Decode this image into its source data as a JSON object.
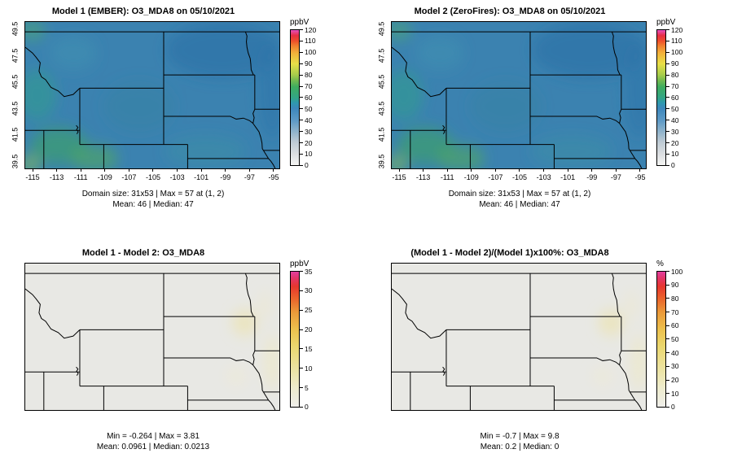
{
  "panels": [
    {
      "title": "Model 1 (EMBER): O3_MDA8 on 05/10/2021",
      "x_ticks": [
        "-115",
        "-113",
        "-111",
        "-109",
        "-107",
        "-105",
        "-103",
        "-101",
        "-99",
        "-97",
        "-95"
      ],
      "y_ticks": [
        "49.5",
        "47.5",
        "45.5",
        "43.5",
        "41.5",
        "39.5"
      ],
      "colorbar_unit": "ppbV",
      "colorbar_ticks": [
        "120",
        "110",
        "100",
        "90",
        "80",
        "70",
        "60",
        "50",
        "40",
        "30",
        "20",
        "10",
        "0"
      ],
      "colorbar_gradient": [
        "#f5f5f3 0%",
        "#dcdfe2 8%",
        "#bfcbd4 17%",
        "#8fb3cb 25%",
        "#5e9ac6 33%",
        "#3d87bc 42%",
        "#2f98b0 46%",
        "#33a585 50%",
        "#3fad5f 58%",
        "#77bb4f 63%",
        "#a8cd4b 67%",
        "#e8df48 75%",
        "#f2b13b 83%",
        "#f1832f 88%",
        "#ee4e2b 92%",
        "#e72f44 96%",
        "#e650c0 100%"
      ],
      "caption1": "Domain size: 31x53 | Max = 57 at (1, 2)",
      "caption2": "Mean: 46 |  Median: 47"
    },
    {
      "title": "Model 2 (ZeroFires): O3_MDA8 on 05/10/2021",
      "x_ticks": [
        "-115",
        "-113",
        "-111",
        "-109",
        "-107",
        "-105",
        "-103",
        "-101",
        "-99",
        "-97",
        "-95"
      ],
      "y_ticks": [
        "49.5",
        "47.5",
        "45.5",
        "43.5",
        "41.5",
        "39.5"
      ],
      "colorbar_unit": "ppbV",
      "colorbar_ticks": [
        "120",
        "110",
        "100",
        "90",
        "80",
        "70",
        "60",
        "50",
        "40",
        "30",
        "20",
        "10",
        "0"
      ],
      "colorbar_gradient": [
        "#f5f5f3 0%",
        "#dcdfe2 8%",
        "#bfcbd4 17%",
        "#8fb3cb 25%",
        "#5e9ac6 33%",
        "#3d87bc 42%",
        "#2f98b0 46%",
        "#33a585 50%",
        "#3fad5f 58%",
        "#77bb4f 63%",
        "#a8cd4b 67%",
        "#e8df48 75%",
        "#f2b13b 83%",
        "#f1832f 88%",
        "#ee4e2b 92%",
        "#e72f44 96%",
        "#e650c0 100%"
      ],
      "caption1": "Domain size: 31x53 | Max = 57 at (1, 2)",
      "caption2": "Mean: 46 |  Median: 47"
    },
    {
      "title": "Model 1 - Model 2: O3_MDA8",
      "colorbar_unit": "ppbV",
      "colorbar_ticks": [
        "35",
        "30",
        "25",
        "20",
        "15",
        "10",
        "5",
        "0"
      ],
      "colorbar_gradient": [
        "#efeeea 0%",
        "#eeeccd 14%",
        "#ece29c 30%",
        "#ebd76e 45%",
        "#ecc14e 57%",
        "#eb9a39 70%",
        "#ea642c 80%",
        "#e6372e 89%",
        "#e33567 95%",
        "#e23f9f 100%"
      ],
      "caption1": "Min = -0.264 | Max = 3.81",
      "caption2": "Mean: 0.0961 |  Median: 0.0213"
    },
    {
      "title": "(Model 1 - Model 2)/(Model 1)x100%: O3_MDA8",
      "colorbar_unit": "%",
      "colorbar_ticks": [
        "100",
        "90",
        "80",
        "70",
        "60",
        "50",
        "40",
        "30",
        "20",
        "10",
        "0"
      ],
      "colorbar_gradient": [
        "#efeeea 0%",
        "#eeeccd 14%",
        "#ece29c 30%",
        "#ebd76e 45%",
        "#ecc14e 57%",
        "#eb9a39 70%",
        "#ea642c 80%",
        "#e6372e 89%",
        "#e33567 95%",
        "#e23f9f 100%"
      ],
      "caption1": "Min = -0.7 | Max = 9.8",
      "caption2": "Mean: 0.2 |  Median: 0"
    }
  ],
  "chart_data": [
    {
      "type": "heatmap",
      "title": "Model 1 (EMBER): O3_MDA8 on 05/10/2021",
      "x_ticks": [
        -115,
        -113,
        -111,
        -109,
        -107,
        -105,
        -103,
        -101,
        -99,
        -97,
        -95
      ],
      "y_ticks": [
        39.5,
        41.5,
        43.5,
        45.5,
        47.5,
        49.5
      ],
      "x_range": [
        -115,
        -95
      ],
      "y_range": [
        39.5,
        49.5
      ],
      "colorbar": {
        "unit": "ppbV",
        "min": 0,
        "max": 120,
        "tick_step": 10
      },
      "legend_position": "right",
      "stats": {
        "domain_size": "31x53",
        "max": 57,
        "max_at": "(1, 2)",
        "mean": 46,
        "median": 47
      }
    },
    {
      "type": "heatmap",
      "title": "Model 2 (ZeroFires): O3_MDA8 on 05/10/2021",
      "x_ticks": [
        -115,
        -113,
        -111,
        -109,
        -107,
        -105,
        -103,
        -101,
        -99,
        -97,
        -95
      ],
      "y_ticks": [
        39.5,
        41.5,
        43.5,
        45.5,
        47.5,
        49.5
      ],
      "x_range": [
        -115,
        -95
      ],
      "y_range": [
        39.5,
        49.5
      ],
      "colorbar": {
        "unit": "ppbV",
        "min": 0,
        "max": 120,
        "tick_step": 10
      },
      "legend_position": "right",
      "stats": {
        "domain_size": "31x53",
        "max": 57,
        "max_at": "(1, 2)",
        "mean": 46,
        "median": 47
      }
    },
    {
      "type": "heatmap",
      "title": "Model 1 - Model 2: O3_MDA8",
      "colorbar": {
        "unit": "ppbV",
        "min": 0,
        "max": 35,
        "tick_step": 5
      },
      "legend_position": "right",
      "stats": {
        "min": -0.264,
        "max": 3.81,
        "mean": 0.0961,
        "median": 0.0213
      }
    },
    {
      "type": "heatmap",
      "title": "(Model 1 - Model 2)/(Model 1)x100%: O3_MDA8",
      "colorbar": {
        "unit": "%",
        "min": 0,
        "max": 100,
        "tick_step": 10
      },
      "legend_position": "right",
      "stats": {
        "min": -0.7,
        "max": 9.8,
        "mean": 0.2,
        "median": 0
      }
    }
  ]
}
